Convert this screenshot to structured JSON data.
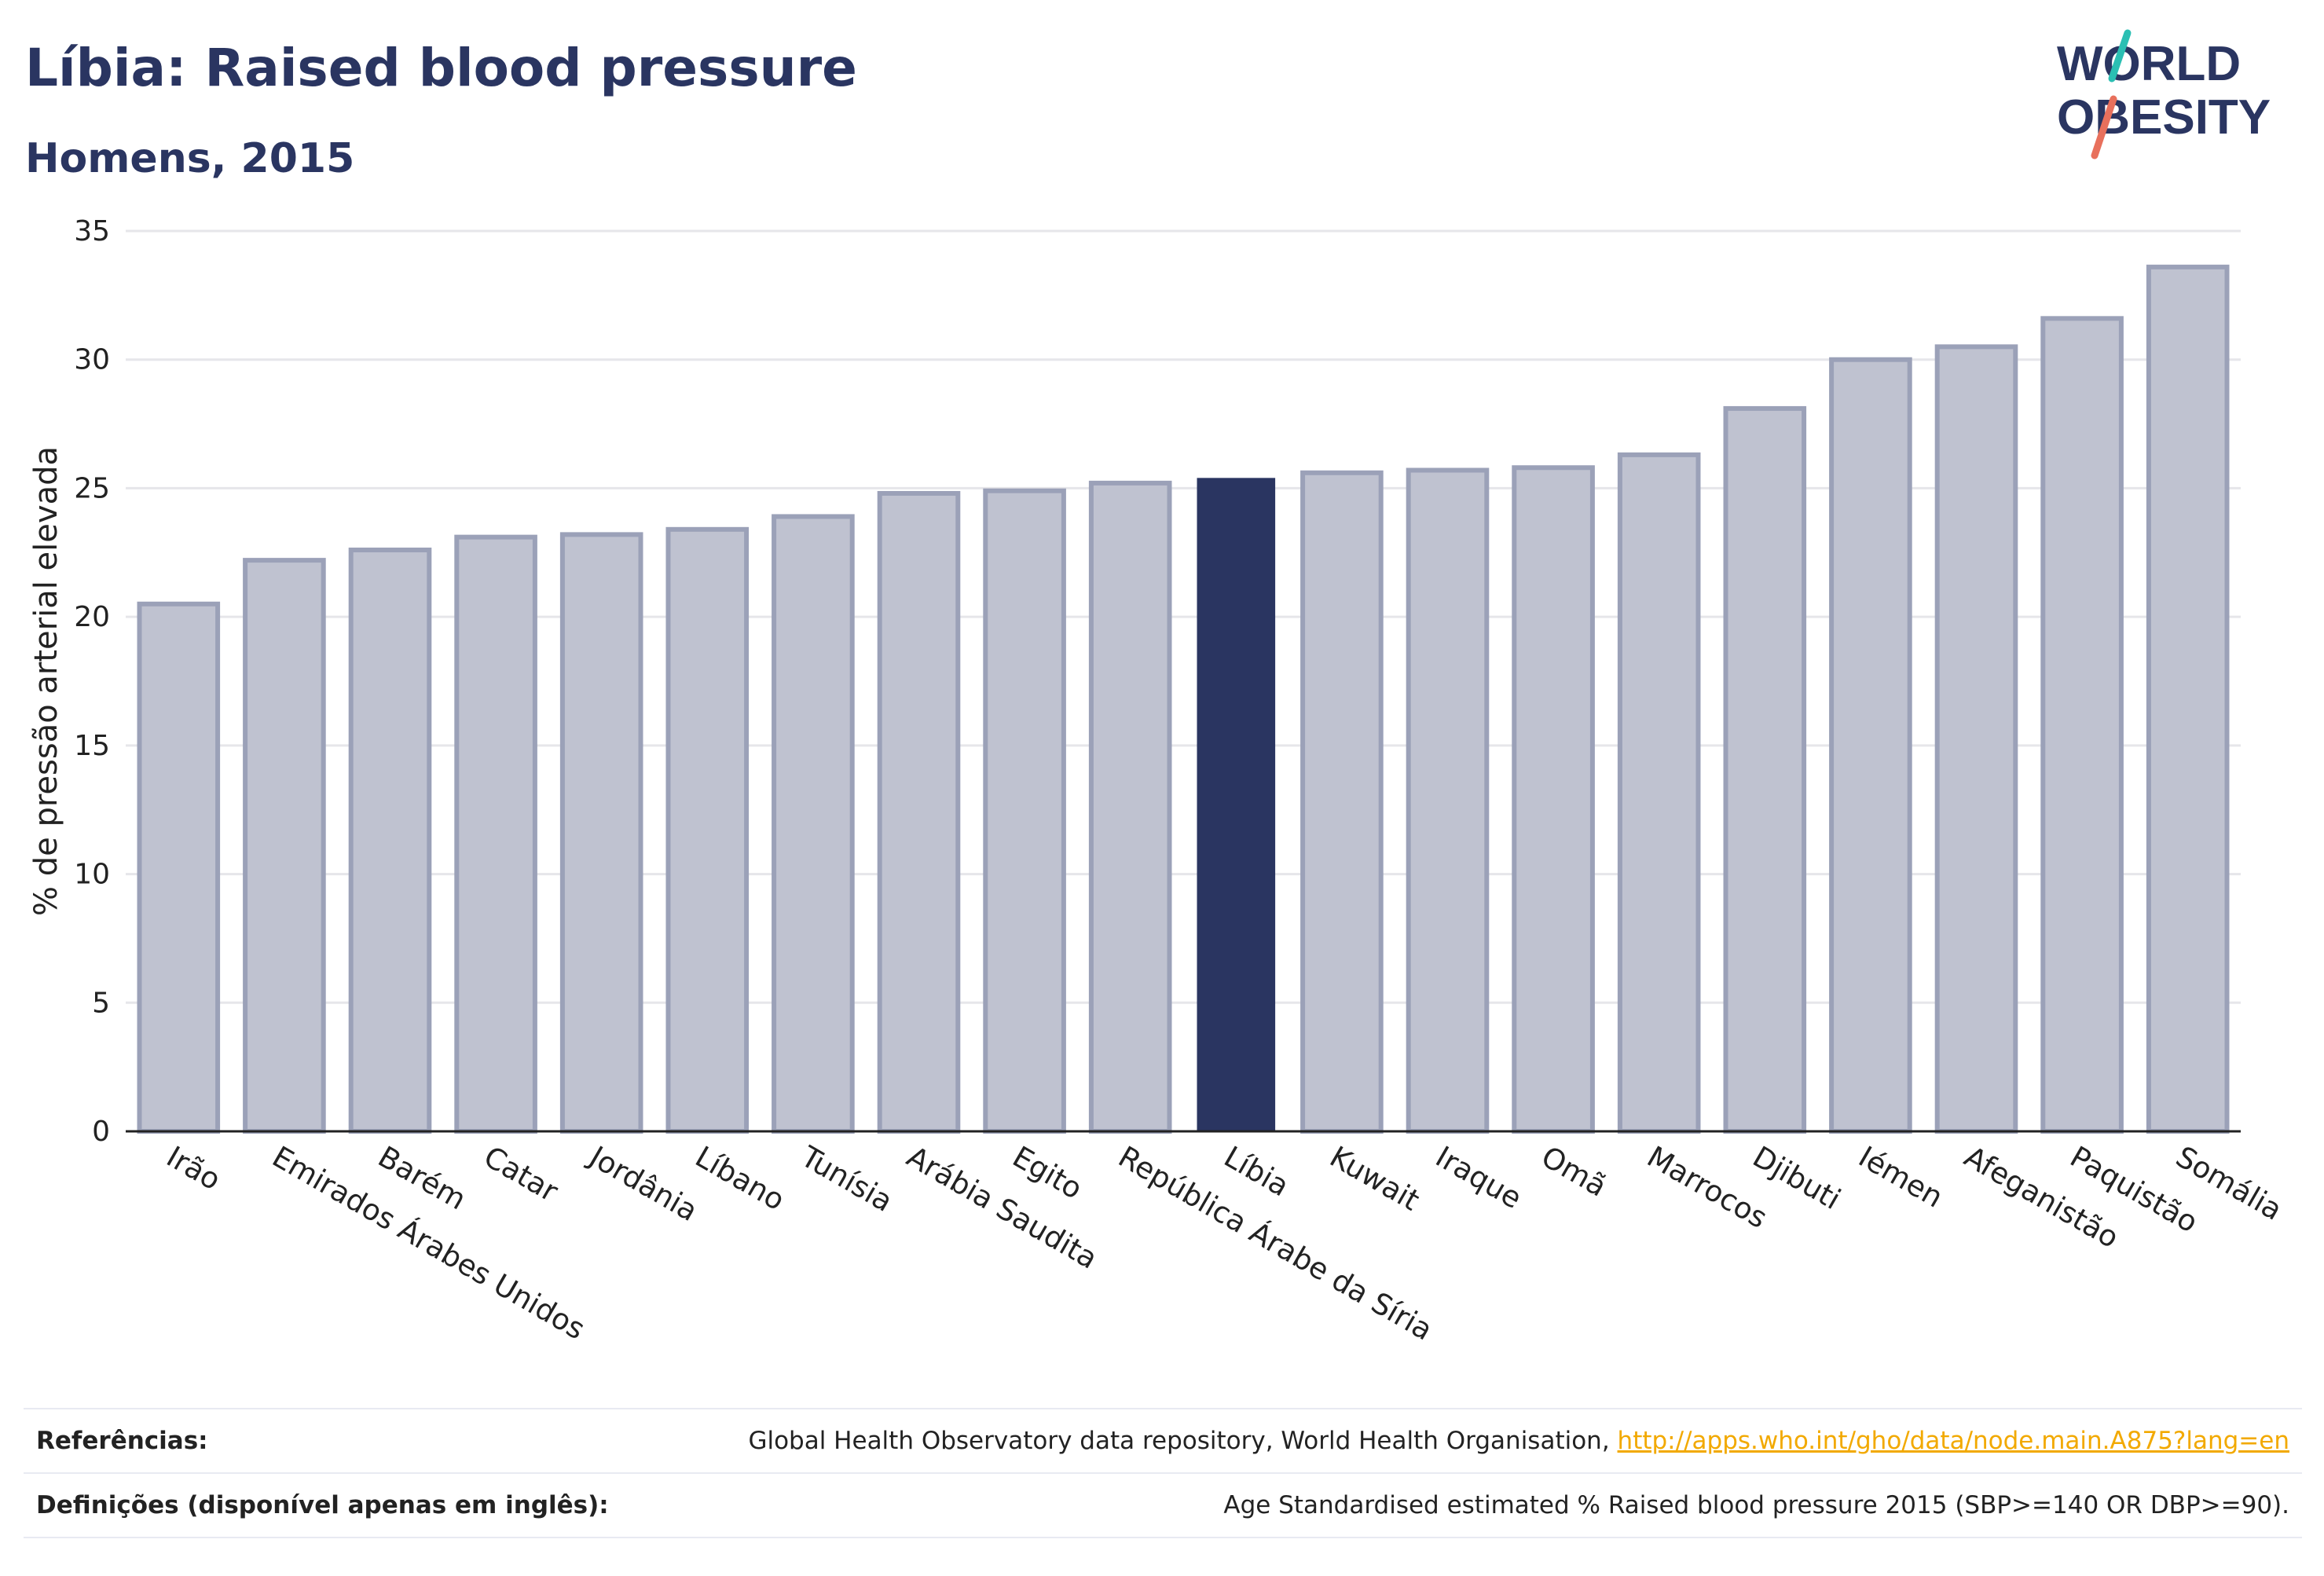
{
  "header": {
    "title": "Líbia: Raised blood pressure",
    "subtitle": "Homens, 2015"
  },
  "logo": {
    "line1": "WORLD",
    "line2": "OBESITY",
    "colors": {
      "text": "#2a3561",
      "slash_top": "#2bbfb3",
      "slash_bottom": "#e8705c"
    }
  },
  "colors": {
    "highlight_bar": "#2a3561",
    "default_bar_fill": "#bfc2d0",
    "default_bar_stroke": "#9ba1b8",
    "grid": "#e6e6ea",
    "axis": "#222222",
    "link": "#f2a900"
  },
  "chart_data": {
    "type": "bar",
    "ylabel": "% de pressão arterial elevada",
    "ylim": [
      0,
      35
    ],
    "yticks": [
      0,
      5,
      10,
      15,
      20,
      25,
      30,
      35
    ],
    "grid": true,
    "highlight": "Líbia",
    "categories": [
      "Irão",
      "Emirados Árabes Unidos",
      "Barém",
      "Catar",
      "Jordânia",
      "Líbano",
      "Tunísia",
      "Arábia Saudita",
      "Egito",
      "República Árabe da Síria",
      "Líbia",
      "Kuwait",
      "Iraque",
      "Omã",
      "Marrocos",
      "Djibuti",
      "Iémen",
      "Afeganistão",
      "Paquistão",
      "Somália"
    ],
    "values": [
      20.5,
      22.2,
      22.6,
      23.1,
      23.2,
      23.4,
      23.9,
      24.8,
      24.9,
      25.2,
      25.4,
      25.6,
      25.7,
      25.8,
      26.3,
      28.1,
      30.0,
      30.5,
      31.6,
      33.6
    ]
  },
  "footer": {
    "references_label": "Referências:",
    "references_text": "Global Health Observatory data repository, World Health Organisation, ",
    "references_link": "http://apps.who.int/gho/data/node.main.A875?lang=en",
    "definitions_label": "Definições (disponível apenas em inglês):",
    "definitions_text": "Age Standardised estimated % Raised blood pressure 2015 (SBP>=140 OR DBP>=90)."
  }
}
